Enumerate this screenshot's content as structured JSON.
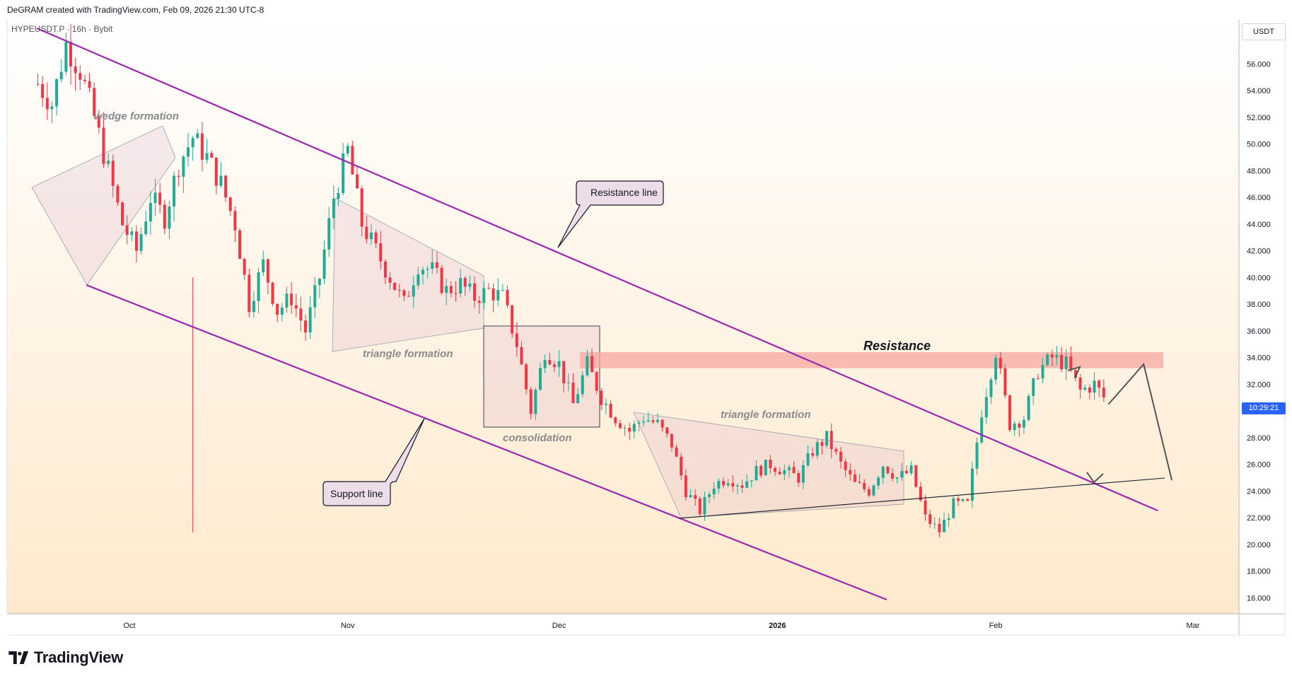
{
  "header": {
    "credit": "DeGRAM created with TradingView.com, Feb 09, 2026 21:30 UTC-8"
  },
  "symbol": {
    "title": "HYPEUSDT.P · 16h · Bybit"
  },
  "price_axis": {
    "unit": "USDT",
    "current_countdown": "10:29:21"
  },
  "footer": {
    "brand": "TradingView"
  },
  "colors": {
    "up": "#22ab94",
    "down": "#f23645",
    "channel": "#9c27b0",
    "zone": "#f7a8a0"
  },
  "annotations": {
    "resistance_line": "Resistance line",
    "support_line": "Support line",
    "resistance": "Resistance",
    "wedge": "wedge formation",
    "triangle1": "triangle formation",
    "consolidation": "consolidation",
    "triangle2": "triangle formation"
  },
  "chart_data": {
    "type": "candlestick",
    "title": "",
    "x_ticks": [
      "Oct",
      "Nov",
      "Dec",
      "2026",
      "Feb",
      "Mar"
    ],
    "y_ticks": [
      16,
      18,
      20,
      22,
      24,
      26,
      28,
      30,
      32,
      34,
      36,
      38,
      40,
      42,
      44,
      46,
      48,
      50,
      52,
      54,
      56
    ],
    "y_tick_labels": [
      "16.000",
      "18.000",
      "20.000",
      "22.000",
      "24.000",
      "26.000",
      "28.000",
      "30.000",
      "32.000",
      "34.000",
      "36.000",
      "38.000",
      "40.000",
      "42.000",
      "44.000",
      "46.000",
      "48.000",
      "50.000",
      "52.000",
      "54.000",
      "56.000"
    ],
    "ylim": [
      14.8,
      59.3
    ],
    "grid": false,
    "price_path": [
      [
        "Sep 18",
        54.5
      ],
      [
        "Sep 20",
        53
      ],
      [
        "Sep 22",
        57.5
      ],
      [
        "Sep 24",
        55.5
      ],
      [
        "Sep 26",
        52
      ],
      [
        "Sep 28",
        48
      ],
      [
        "Sep 30",
        44
      ],
      [
        "Oct 2",
        42
      ],
      [
        "Oct 4",
        46
      ],
      [
        "Oct 6",
        44.5
      ],
      [
        "Oct 8",
        48.5
      ],
      [
        "Oct 10",
        50.5
      ],
      [
        "Oct 12",
        49
      ],
      [
        "Oct 14",
        47
      ],
      [
        "Oct 16",
        44
      ],
      [
        "Oct 18",
        38
      ],
      [
        "Oct 20",
        41
      ],
      [
        "Oct 22",
        37.5
      ],
      [
        "Oct 24",
        38.5
      ],
      [
        "Oct 26",
        36
      ],
      [
        "Oct 28",
        40
      ],
      [
        "Oct 30",
        46
      ],
      [
        "Nov 1",
        49.5
      ],
      [
        "Nov 3",
        44
      ],
      [
        "Nov 5",
        42
      ],
      [
        "Nov 7",
        40
      ],
      [
        "Nov 9",
        38
      ],
      [
        "Nov 11",
        41
      ],
      [
        "Nov 13",
        40.5
      ],
      [
        "Nov 15",
        39
      ],
      [
        "Nov 17",
        39.5
      ],
      [
        "Nov 19",
        38.5
      ],
      [
        "Nov 21",
        39
      ],
      [
        "Nov 23",
        38.5
      ],
      [
        "Nov 25",
        35
      ],
      [
        "Nov 27",
        30
      ],
      [
        "Nov 29",
        34.5
      ],
      [
        "Dec 1",
        33.5
      ],
      [
        "Dec 3",
        30.5
      ],
      [
        "Dec 5",
        33.5
      ],
      [
        "Dec 7",
        31
      ],
      [
        "Dec 9",
        29.5
      ],
      [
        "Dec 11",
        28.5
      ],
      [
        "Dec 13",
        29.5
      ],
      [
        "Dec 15",
        29
      ],
      [
        "Dec 17",
        27.5
      ],
      [
        "Dec 19",
        24
      ],
      [
        "Dec 21",
        22.5
      ],
      [
        "Dec 23",
        24.5
      ],
      [
        "Dec 25",
        25
      ],
      [
        "Dec 27",
        24.5
      ],
      [
        "Dec 29",
        25.5
      ],
      [
        "Dec 31",
        26
      ],
      [
        "Jan 2",
        25.5
      ],
      [
        "Jan 4",
        25
      ],
      [
        "Jan 6",
        27
      ],
      [
        "Jan 8",
        28
      ],
      [
        "Jan 10",
        26
      ],
      [
        "Jan 12",
        24.5
      ],
      [
        "Jan 14",
        24
      ],
      [
        "Jan 16",
        26
      ],
      [
        "Jan 18",
        25
      ],
      [
        "Jan 20",
        25.5
      ],
      [
        "Jan 22",
        22
      ],
      [
        "Jan 24",
        21
      ],
      [
        "Jan 26",
        23
      ],
      [
        "Jan 28",
        23
      ],
      [
        "Jan 30",
        30
      ],
      [
        "Feb 1",
        34.5
      ],
      [
        "Feb 3",
        29
      ],
      [
        "Feb 5",
        29.5
      ],
      [
        "Feb 7",
        33
      ],
      [
        "Feb 9",
        34
      ],
      [
        "Feb 11",
        33.5
      ],
      [
        "Feb 13",
        31.5
      ],
      [
        "Feb 15",
        32
      ],
      [
        "Feb 17",
        30.5
      ]
    ],
    "current_price": 30.7,
    "resistance_zone": [
      33.2,
      34.4
    ],
    "projection": [
      [
        "Feb 17",
        30.5
      ],
      [
        "Feb 22",
        33.5
      ],
      [
        "Feb 26",
        24.8
      ]
    ]
  }
}
